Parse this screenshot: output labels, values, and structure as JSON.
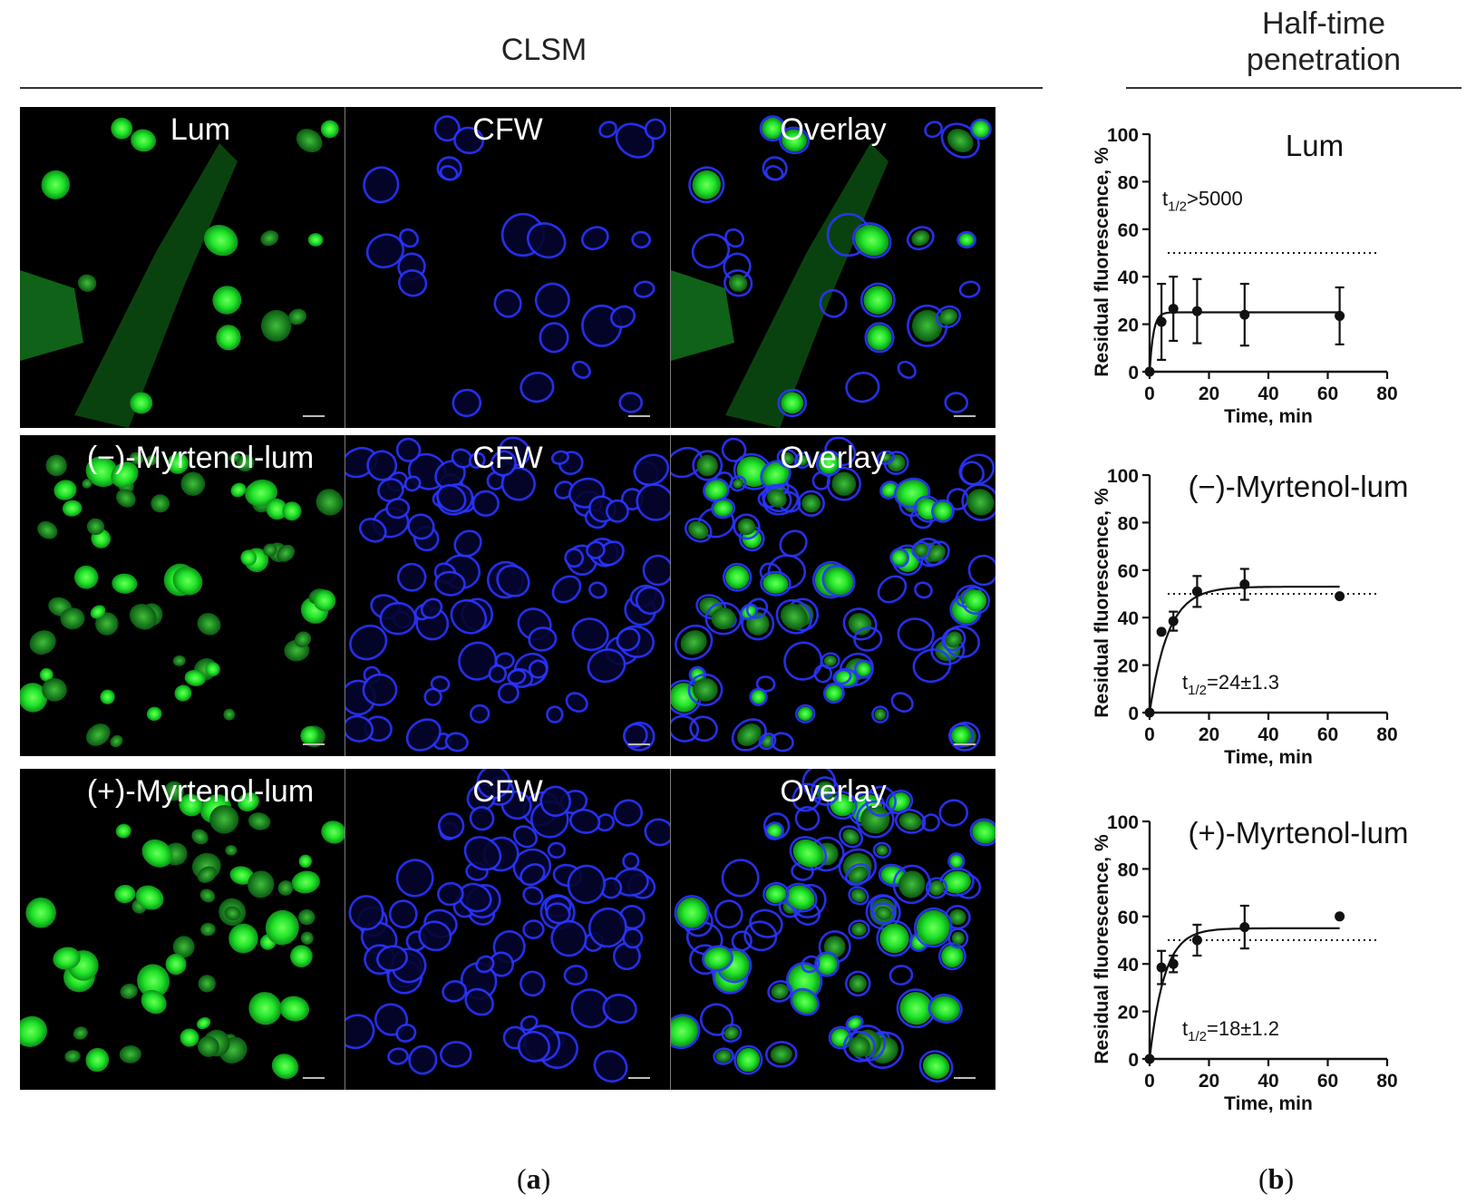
{
  "headers": {
    "clsm": "CLSM",
    "half_time_line1": "Half-time",
    "half_time_line2": "penetration"
  },
  "micrographs": {
    "rows": [
      {
        "labels": [
          "Lum",
          "CFW",
          "Overlay"
        ]
      },
      {
        "labels": [
          "(−)-Myrtenol-lum",
          "CFW",
          "Overlay"
        ]
      },
      {
        "labels": [
          "(+)-Myrtenol-lum",
          "CFW",
          "Overlay"
        ]
      }
    ],
    "colors": {
      "green": "#22e52a",
      "blue": "#2a35ff",
      "background": "#000000"
    }
  },
  "chart_data": [
    {
      "type": "scatter",
      "title": "Lum",
      "xlabel": "Time, min",
      "ylabel": "Residual fluorescence, %",
      "xlim": [
        0,
        80
      ],
      "ylim": [
        0,
        100
      ],
      "xticks": [
        0,
        20,
        40,
        60,
        80
      ],
      "yticks": [
        0,
        20,
        40,
        60,
        80,
        100
      ],
      "annotation": {
        "t_prefix": "t",
        "t_sub": "1/2",
        "t_value": ">5000"
      },
      "threshold": 50,
      "points": [
        {
          "x": 0,
          "y": 0,
          "err": 0
        },
        {
          "x": 4,
          "y": 21,
          "err": 16
        },
        {
          "x": 8,
          "y": 26.5,
          "err": 13.5
        },
        {
          "x": 16,
          "y": 25.5,
          "err": 13.5
        },
        {
          "x": 32,
          "y": 24,
          "err": 13
        },
        {
          "x": 64,
          "y": 23.5,
          "err": 12
        }
      ],
      "fit": {
        "plateau": 25,
        "k": 0.8
      }
    },
    {
      "type": "scatter",
      "title": "(−)-Myrtenol-lum",
      "xlabel": "Time, min",
      "ylabel": "Residual fluorescence, %",
      "xlim": [
        0,
        80
      ],
      "ylim": [
        0,
        100
      ],
      "xticks": [
        0,
        20,
        40,
        60,
        80
      ],
      "yticks": [
        0,
        20,
        40,
        60,
        80,
        100
      ],
      "annotation": {
        "t_prefix": "t",
        "t_sub": "1/2",
        "t_value": "=24±1.3"
      },
      "threshold": 50,
      "points": [
        {
          "x": 0,
          "y": 0,
          "err": 0
        },
        {
          "x": 4,
          "y": 34,
          "err": 0
        },
        {
          "x": 8,
          "y": 38.5,
          "err": 4
        },
        {
          "x": 16,
          "y": 51,
          "err": 6.5
        },
        {
          "x": 32,
          "y": 54,
          "err": 6.5
        },
        {
          "x": 64,
          "y": 49,
          "err": 0
        }
      ],
      "fit": {
        "plateau": 53,
        "k": 0.16
      }
    },
    {
      "type": "scatter",
      "title": "(+)-Myrtenol-lum",
      "xlabel": "Time, min",
      "ylabel": "Residual fluorescence, %",
      "xlim": [
        0,
        80
      ],
      "ylim": [
        0,
        100
      ],
      "xticks": [
        0,
        20,
        40,
        60,
        80
      ],
      "yticks": [
        0,
        20,
        40,
        60,
        80,
        100
      ],
      "annotation": {
        "t_prefix": "t",
        "t_sub": "1/2",
        "t_value": "=18±1.2"
      },
      "threshold": 50,
      "points": [
        {
          "x": 0,
          "y": 0,
          "err": 0
        },
        {
          "x": 4,
          "y": 38.5,
          "err": 7
        },
        {
          "x": 8,
          "y": 40,
          "err": 3.5
        },
        {
          "x": 16,
          "y": 50,
          "err": 6.5
        },
        {
          "x": 32,
          "y": 55.5,
          "err": 9
        },
        {
          "x": 64,
          "y": 60,
          "err": 0
        }
      ],
      "fit": {
        "plateau": 55,
        "k": 0.2
      }
    }
  ],
  "sub_labels": {
    "a": "a",
    "b": "b"
  }
}
